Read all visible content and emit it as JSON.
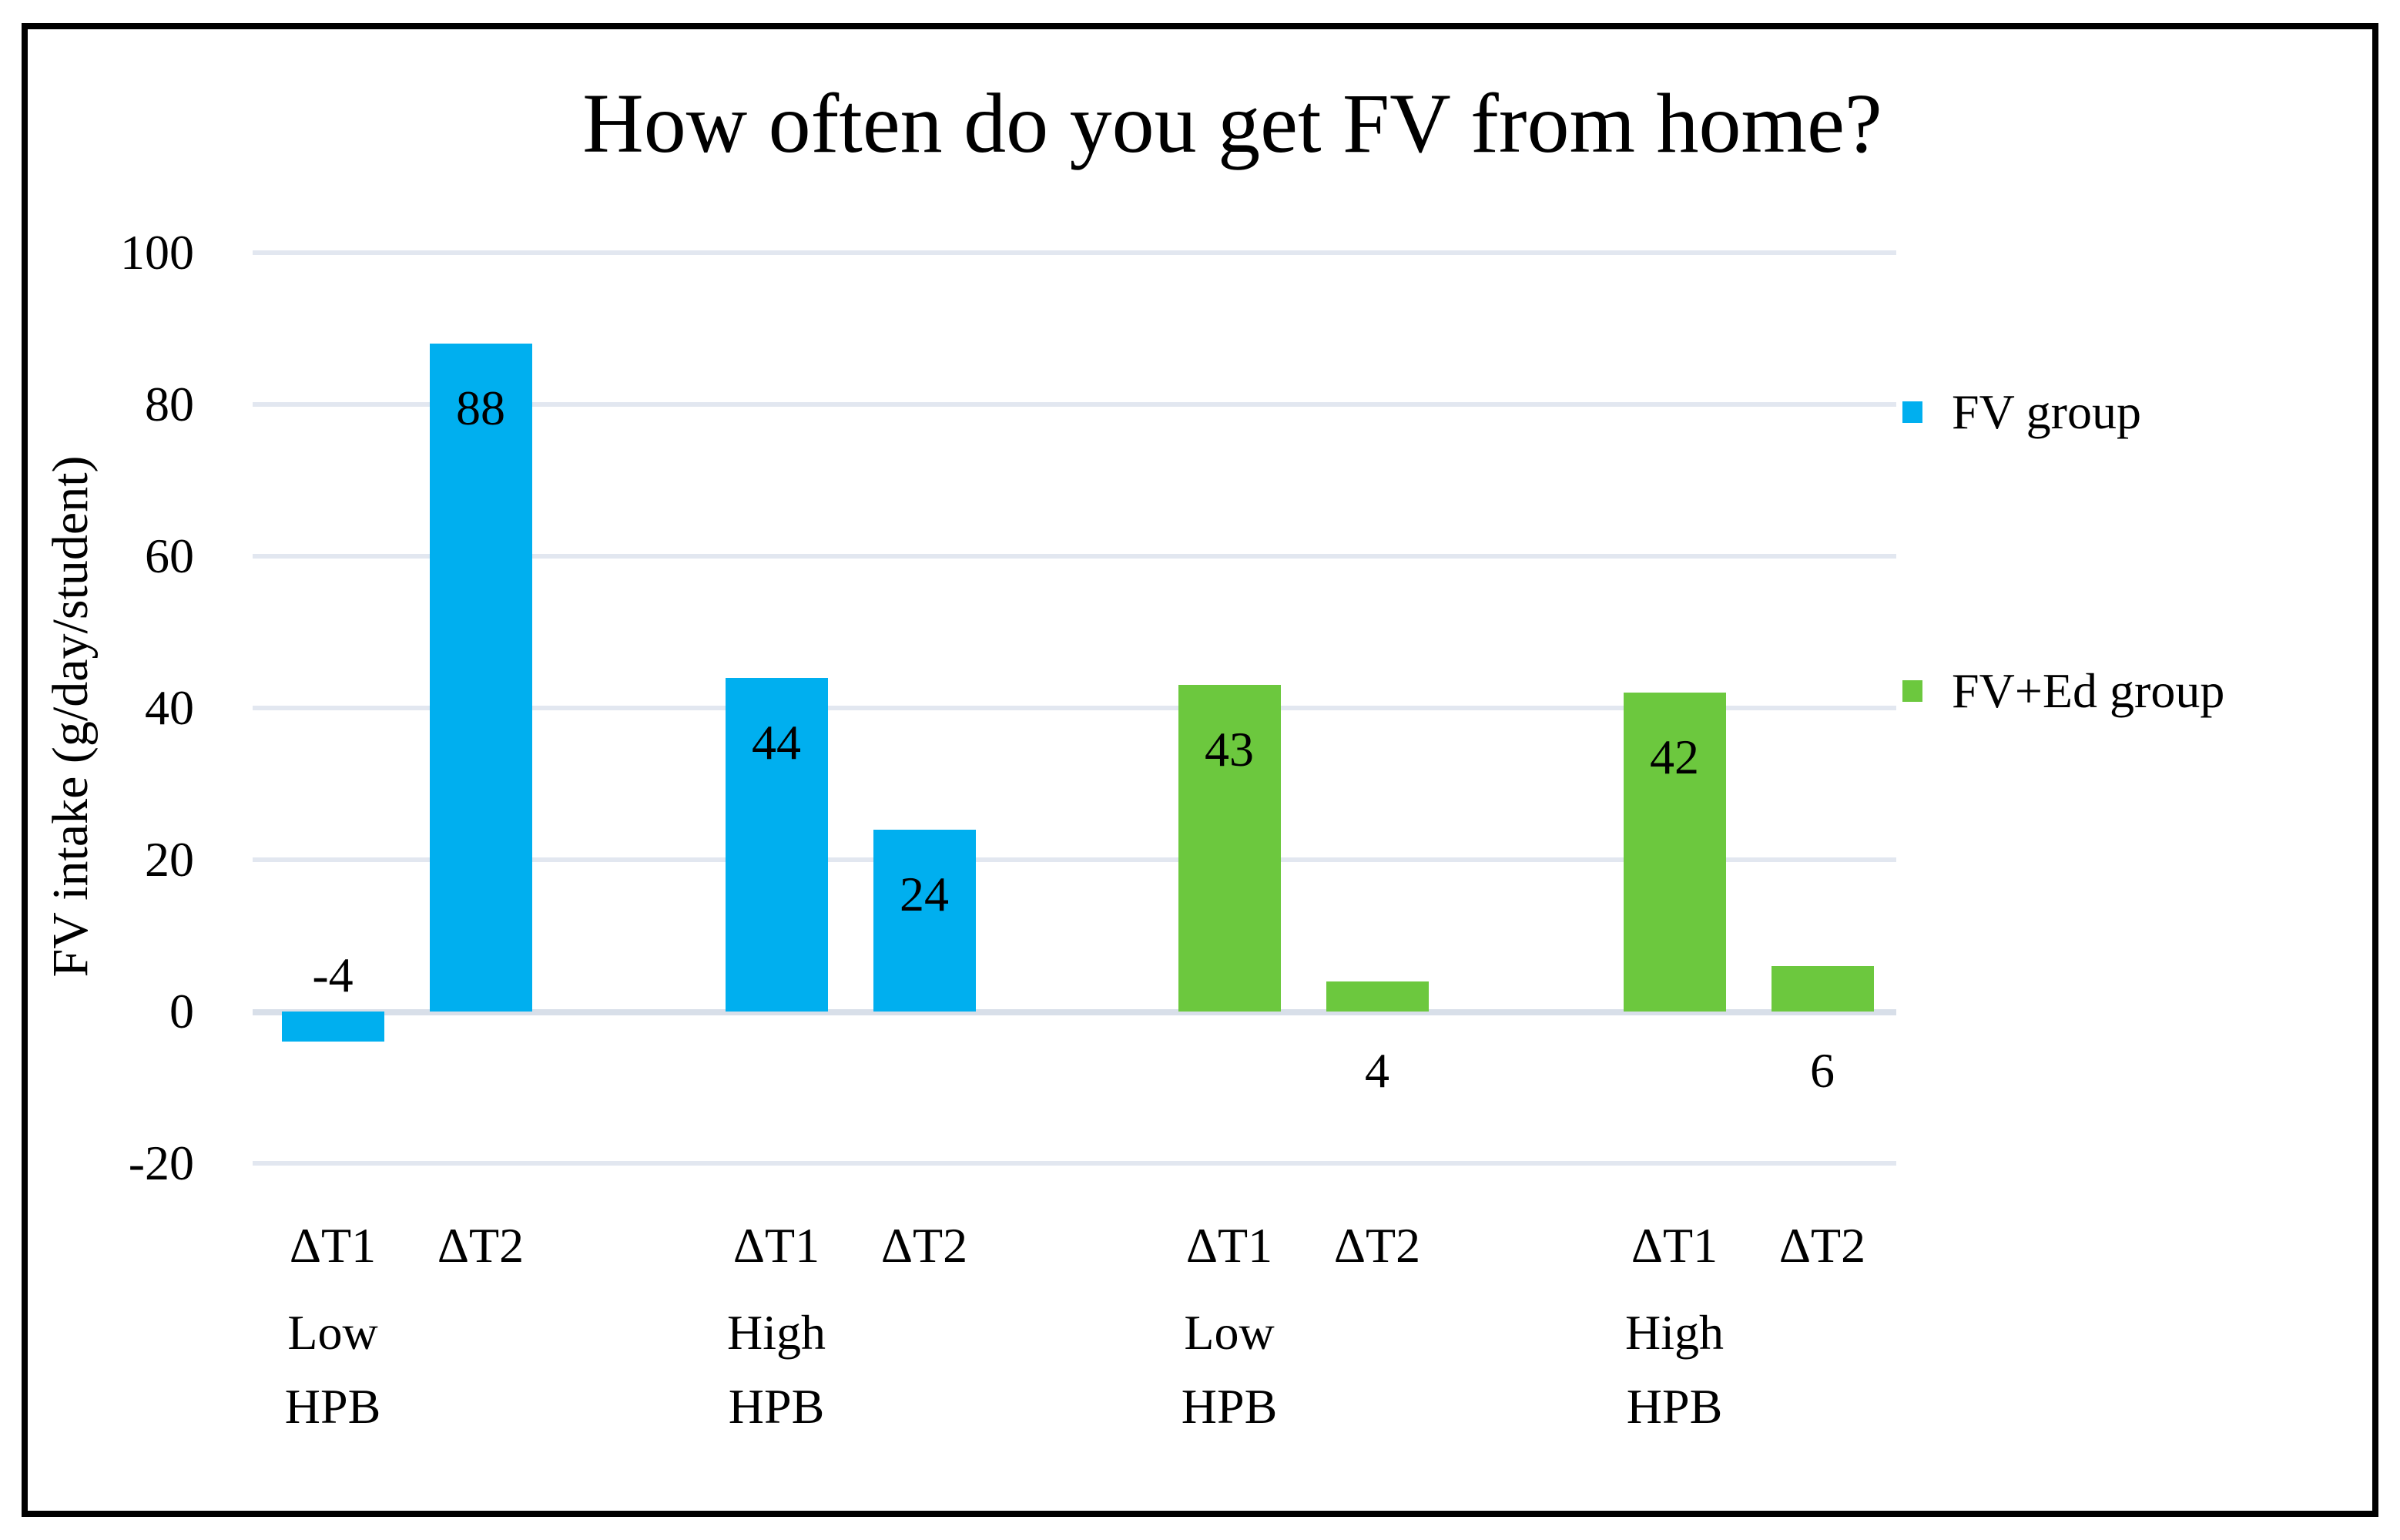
{
  "figure": {
    "background": "#ffffff",
    "border_color": "#000000"
  },
  "chart_data": {
    "type": "bar",
    "title": "How often do you get FV from home?",
    "ylabel": "FV intake (g/day/student)",
    "ylim": [
      -20,
      100
    ],
    "ytick_interval": 20,
    "yticks": [
      100,
      80,
      60,
      40,
      20,
      0,
      -20
    ],
    "ytick_labels": [
      "100",
      "80",
      "60",
      "40",
      "20",
      "0",
      "-20"
    ],
    "grid": true,
    "gridline_color": "#e2e7f0",
    "zero_line_color": "#d8dfe9",
    "legend_position": "right",
    "series": [
      {
        "name": "FV group",
        "color": "#00AFEF"
      },
      {
        "name": "FV+Ed group",
        "color": "#6CC83E"
      }
    ],
    "groups": [
      {
        "series": "FV group",
        "tier2": "Low",
        "tier3": "HPB",
        "bars": [
          {
            "label": "ΔT1",
            "value": -4,
            "data_label": "-4"
          },
          {
            "label": "ΔT2",
            "value": 88,
            "data_label": "88"
          }
        ]
      },
      {
        "series": "FV group",
        "tier2": "High",
        "tier3": "HPB",
        "bars": [
          {
            "label": "ΔT1",
            "value": 44,
            "data_label": "44"
          },
          {
            "label": "ΔT2",
            "value": 24,
            "data_label": "24"
          }
        ]
      },
      {
        "series": "FV+Ed group",
        "tier2": "Low",
        "tier3": "HPB",
        "bars": [
          {
            "label": "ΔT1",
            "value": 43,
            "data_label": "43"
          },
          {
            "label": "ΔT2",
            "value": 4,
            "data_label": "4"
          }
        ]
      },
      {
        "series": "FV+Ed group",
        "tier2": "High",
        "tier3": "HPB",
        "bars": [
          {
            "label": "ΔT1",
            "value": 42,
            "data_label": "42"
          },
          {
            "label": "ΔT2",
            "value": 6,
            "data_label": "6"
          }
        ]
      }
    ]
  }
}
